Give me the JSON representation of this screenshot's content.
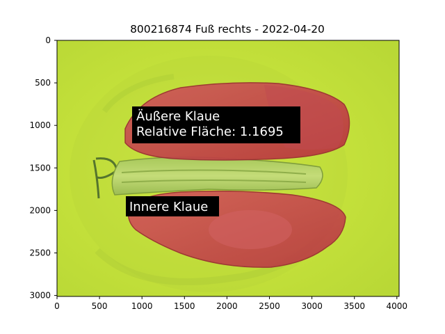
{
  "figure": {
    "title": "800216874 Fuß rechts - 2022-04-20",
    "x_ticks": [
      "0",
      "500",
      "1000",
      "1500",
      "2000",
      "2500",
      "3000",
      "3500",
      "4000"
    ],
    "y_ticks": [
      "0",
      "500",
      "1000",
      "1500",
      "2000",
      "2500",
      "3000"
    ],
    "annotations": {
      "outer_claw_name": "Äußere Klaue",
      "outer_claw_area": "Relative Fläche: 1.1695",
      "inner_claw_name": "Innere Klaue"
    },
    "colors": {
      "background_mat": "#c6e33a",
      "claw_overlay": "#c84a4a",
      "label_box": "#000000",
      "label_text": "#ffffff"
    }
  }
}
